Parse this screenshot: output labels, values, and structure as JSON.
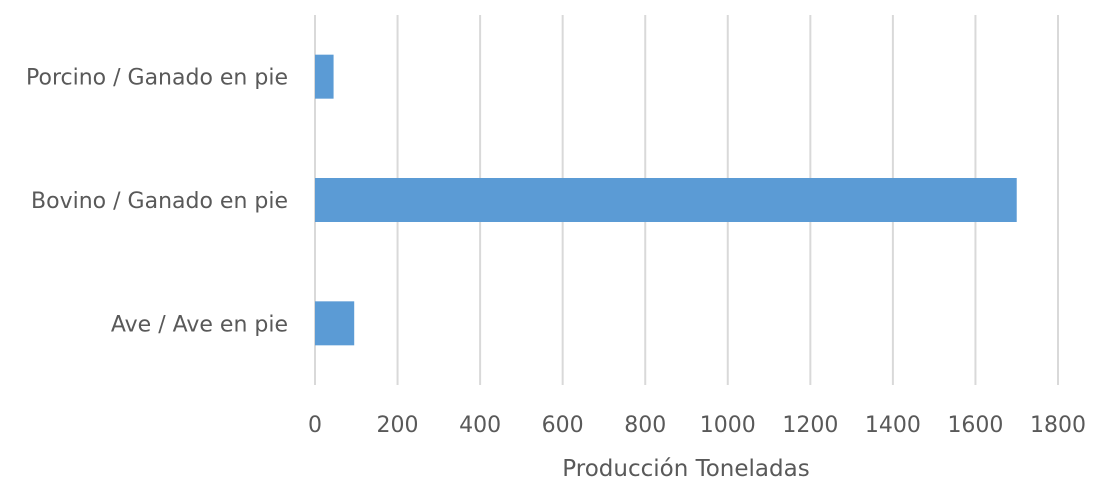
{
  "chart_data": {
    "type": "bar",
    "orientation": "horizontal",
    "categories": [
      "Porcino / Ganado en pie",
      "Bovino / Ganado en pie",
      "Ave / Ave en pie"
    ],
    "values": [
      45,
      1700,
      95
    ],
    "xlabel": "Producción Toneladas",
    "xlim": [
      0,
      1800
    ],
    "xticks": [
      0,
      200,
      400,
      600,
      800,
      1000,
      1200,
      1400,
      1600,
      1800
    ],
    "grid": "vertical",
    "legend": "none",
    "bar_color": "#5b9bd5"
  }
}
